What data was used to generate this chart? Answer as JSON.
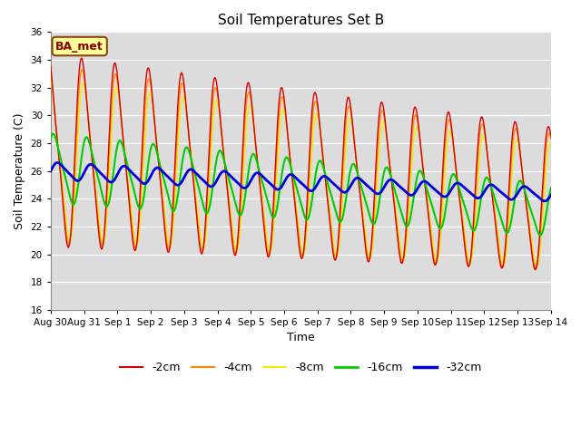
{
  "title": "Soil Temperatures Set B",
  "xlabel": "Time",
  "ylabel": "Soil Temperature (C)",
  "ylim": [
    16,
    36
  ],
  "yticks": [
    16,
    18,
    20,
    22,
    24,
    26,
    28,
    30,
    32,
    34,
    36
  ],
  "plot_bg_color": "#dcdcdc",
  "fig_bg_color": "#ffffff",
  "series_colors": {
    "-2cm": "#dd0000",
    "-4cm": "#ff8800",
    "-8cm": "#eeee00",
    "-16cm": "#00cc00",
    "-32cm": "#0000dd"
  },
  "series_linewidths": {
    "-2cm": 1.0,
    "-4cm": 1.0,
    "-8cm": 1.0,
    "-16cm": 1.5,
    "-32cm": 2.0
  },
  "xtick_labels": [
    "Aug 30",
    "Aug 31",
    "Sep 1",
    "Sep 2",
    "Sep 3",
    "Sep 4",
    "Sep 5",
    "Sep 6",
    "Sep 7",
    "Sep 8",
    "Sep 9",
    "Sep 10",
    "Sep 11",
    "Sep 12",
    "Sep 13",
    "Sep 14"
  ],
  "annotation_text": "BA_met",
  "annotation_fg": "#8b0000",
  "annotation_bg": "#ffff99",
  "annotation_border": "#8b4513"
}
